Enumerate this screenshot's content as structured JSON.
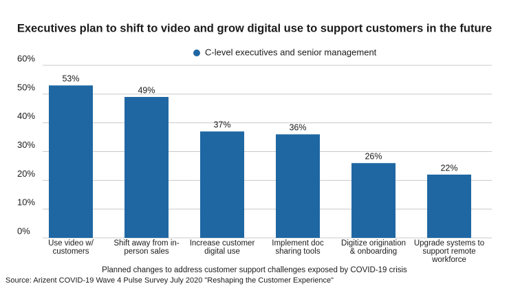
{
  "chart_data": {
    "type": "bar",
    "title": "Executives plan to shift to video and grow digital use to support customers in the future",
    "x_label": "Planned changes to address customer support challenges exposed by COVID-19 crisis",
    "source": "Source: Arizent COVID-19 Wave 4 Pulse Survey July 2020 \"Reshaping the Customer Experience\"",
    "categories": [
      "Use video w/ customers",
      "Shift away from in-person sales",
      "Increase customer digital use",
      "Implement doc sharing tools",
      "Digitize origination & onboarding",
      "Upgrade systems to support remote workforce"
    ],
    "series": [
      {
        "name": "C-level executives and senior management",
        "color": "#1f67a3",
        "values": [
          53,
          49,
          37,
          36,
          26,
          22
        ],
        "value_labels": [
          "53%",
          "49%",
          "37%",
          "36%",
          "26%",
          "22%"
        ]
      }
    ],
    "ylim": [
      0,
      60
    ],
    "yticks": [
      {
        "value": 0,
        "label": "0%"
      },
      {
        "value": 10,
        "label": "10%"
      },
      {
        "value": 20,
        "label": "20%"
      },
      {
        "value": 30,
        "label": "30%"
      },
      {
        "value": 40,
        "label": "40%"
      },
      {
        "value": 50,
        "label": "50%"
      },
      {
        "value": 60,
        "label": "60%"
      }
    ],
    "grid": true,
    "legend": "top"
  }
}
